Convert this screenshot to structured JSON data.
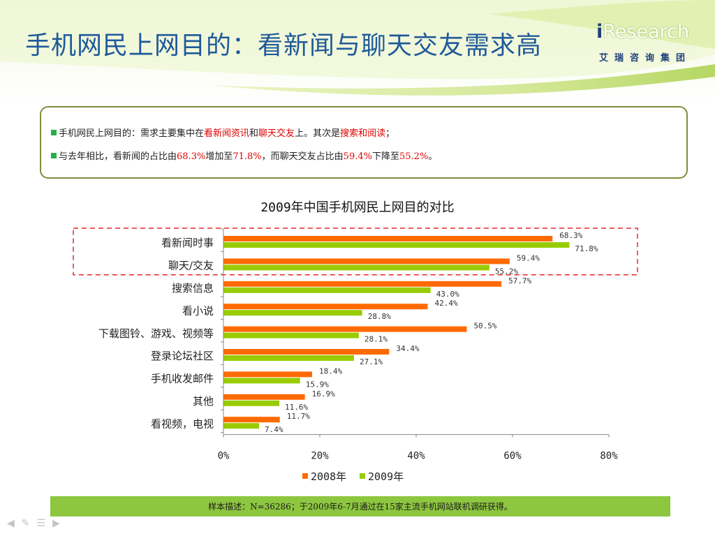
{
  "slide": {
    "title": "手机网民上网目的：看新闻与聊天交友需求高"
  },
  "logo": {
    "main": "Research",
    "i": "i",
    "sub": "艾瑞咨询集团"
  },
  "summary": {
    "line1": [
      {
        "text": "手机网民上网目的：需求主要集中在",
        "hl": false
      },
      {
        "text": "看新闻资讯",
        "hl": true
      },
      {
        "text": "和",
        "hl": false
      },
      {
        "text": "聊天交友",
        "hl": true
      },
      {
        "text": "上。其次是",
        "hl": false
      },
      {
        "text": "搜索和阅读",
        "hl": true
      },
      {
        "text": "；",
        "hl": false
      }
    ],
    "line2": [
      {
        "text": "与去年相比，看新闻的占比由",
        "hl": false
      },
      {
        "text": "68.3%",
        "hl": true
      },
      {
        "text": "增加至",
        "hl": false
      },
      {
        "text": "71.8%",
        "hl": true
      },
      {
        "text": "，而聊天交友占比由",
        "hl": false
      },
      {
        "text": "59.4%",
        "hl": true
      },
      {
        "text": "下降至",
        "hl": false
      },
      {
        "text": "55.2%",
        "hl": true
      },
      {
        "text": "。",
        "hl": false
      }
    ]
  },
  "chart_data": {
    "type": "bar",
    "orientation": "horizontal",
    "title": "2009年中国手机网民上网目的对比",
    "categories": [
      "看新闻时事",
      "聊天/交友",
      "搜索信息",
      "看小说",
      "下载图铃、游戏、视频等",
      "登录论坛社区",
      "手机收发邮件",
      "其他",
      "看视频，电视"
    ],
    "series": [
      {
        "name": "2008年",
        "color": "#ff6a00",
        "values": [
          68.3,
          59.4,
          57.7,
          42.4,
          50.5,
          34.4,
          18.4,
          16.9,
          11.7
        ],
        "labels": [
          "68.3%",
          "59.4%",
          "57.7%",
          "42.4%",
          "50.5%",
          "34.4%",
          "18.4%",
          "16.9%",
          "11.7%"
        ]
      },
      {
        "name": "2009年",
        "color": "#99cc00",
        "values": [
          71.8,
          55.2,
          43.0,
          28.8,
          28.1,
          27.1,
          15.9,
          11.6,
          7.4
        ],
        "labels": [
          "71.8%",
          "55.2%",
          "43.0%",
          "28.8%",
          "28.1%",
          "27.1%",
          "15.9%",
          "11.6%",
          "7.4%"
        ]
      }
    ],
    "xlim": [
      0,
      80
    ],
    "xticks": [
      0,
      20,
      40,
      60,
      80
    ],
    "xtick_labels": [
      "0%",
      "20%",
      "40%",
      "60%",
      "80%"
    ],
    "grid": false,
    "legend": "bottom",
    "highlight_categories": [
      "看新闻时事",
      "聊天/交友"
    ],
    "highlight_color": "#e8262c"
  },
  "footer": {
    "note": "样本描述：N=36286；于2009年6-7月通过在15家主流手机网站联机调研获得。"
  }
}
